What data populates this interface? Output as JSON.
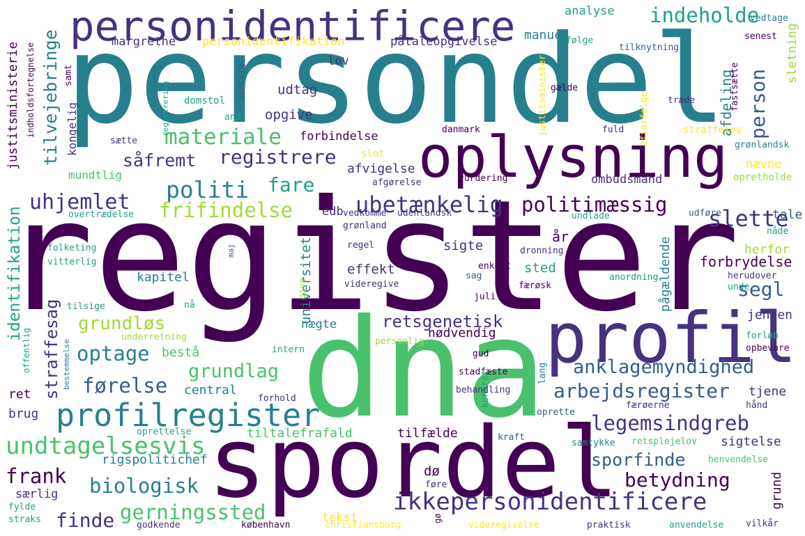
{
  "colors": {
    "background": "#ffffff",
    "palette": {
      "a": "#440154",
      "b": "#46327e",
      "c": "#365c8d",
      "d": "#277f8e",
      "e": "#1fa187",
      "f": "#4ac16d",
      "g": "#a0da39",
      "h": "#fde725"
    }
  },
  "words": [
    {
      "text": "register",
      "c": "a"
    },
    {
      "text": "persondel",
      "c": "d"
    },
    {
      "text": "dna",
      "c": "f"
    },
    {
      "text": "spordel",
      "c": "a"
    },
    {
      "text": "personidentificere",
      "c": "b"
    },
    {
      "text": "oplysning",
      "c": "a"
    },
    {
      "text": "profil",
      "c": "b"
    },
    {
      "text": "profilregister",
      "c": "d"
    },
    {
      "text": "ikkepersonidentificere",
      "c": "b"
    },
    {
      "text": "ubetænkelig",
      "c": "b"
    },
    {
      "text": "politimæssig",
      "c": "a"
    },
    {
      "text": "politi",
      "c": "d"
    },
    {
      "text": "registrere",
      "c": "b"
    },
    {
      "text": "materiale",
      "c": "f"
    },
    {
      "text": "slette",
      "c": "b"
    },
    {
      "text": "frifindelse",
      "c": "g"
    },
    {
      "text": "uhjemlet",
      "c": "b"
    },
    {
      "text": "fare",
      "c": "e"
    },
    {
      "text": "såfremt",
      "c": "b"
    },
    {
      "text": "indeholde",
      "c": "e"
    },
    {
      "text": "person",
      "c": "c"
    },
    {
      "text": "segl",
      "c": "c"
    },
    {
      "text": "retsgenetisk",
      "c": "b"
    },
    {
      "text": "anklagemyndighed",
      "c": "c"
    },
    {
      "text": "arbejdsregister",
      "c": "c"
    },
    {
      "text": "legemsindgreb",
      "c": "b"
    },
    {
      "text": "undtagelsesvis",
      "c": "f"
    },
    {
      "text": "førelse",
      "c": "c"
    },
    {
      "text": "grundlag",
      "c": "f"
    },
    {
      "text": "optage",
      "c": "d"
    },
    {
      "text": "grundløs",
      "c": "g"
    },
    {
      "text": "biologisk",
      "c": "d"
    },
    {
      "text": "gerningssted",
      "c": "f"
    },
    {
      "text": "finde",
      "c": "b"
    },
    {
      "text": "frank",
      "c": "a"
    },
    {
      "text": "sporfinde",
      "c": "c"
    },
    {
      "text": "betydning",
      "c": "a"
    },
    {
      "text": "tilvejebringe",
      "c": "d"
    },
    {
      "text": "identifikation",
      "c": "e"
    },
    {
      "text": "straffesag",
      "c": "b"
    },
    {
      "text": "universitet",
      "c": "d"
    },
    {
      "text": "justitsministerie",
      "c": "a"
    },
    {
      "text": "personidentifikation",
      "c": "h"
    },
    {
      "text": "påtaleopgivelse",
      "c": "b"
    },
    {
      "text": "margrethe",
      "c": "b"
    },
    {
      "text": "manuel",
      "c": "d"
    },
    {
      "text": "analyse",
      "c": "e"
    },
    {
      "text": "lov",
      "c": "b"
    },
    {
      "text": "udtag",
      "c": "b"
    },
    {
      "text": "opgive",
      "c": "b"
    },
    {
      "text": "forbindelse",
      "c": "a"
    },
    {
      "text": "afvigelse",
      "c": "b"
    },
    {
      "text": "ombudsmand",
      "c": "b"
    },
    {
      "text": "afdeling",
      "c": "d"
    },
    {
      "text": "sletning",
      "c": "g"
    },
    {
      "text": "mundtlig",
      "c": "f"
    },
    {
      "text": "kongelig",
      "c": "b"
    },
    {
      "text": "edb",
      "c": "b"
    },
    {
      "text": "effekt",
      "c": "b"
    },
    {
      "text": "sigte",
      "c": "b"
    },
    {
      "text": "sted",
      "c": "e"
    },
    {
      "text": "kapitel",
      "c": "d"
    },
    {
      "text": "år",
      "c": "a"
    },
    {
      "text": "forbrydelse",
      "c": "a"
    },
    {
      "text": "herfor",
      "c": "g"
    },
    {
      "text": "tale",
      "c": "c"
    },
    {
      "text": "pågældende",
      "c": "d"
    },
    {
      "text": "jensen",
      "c": "b"
    },
    {
      "text": "nægte",
      "c": "d"
    },
    {
      "text": "nødvendig",
      "c": "a"
    },
    {
      "text": "bestå",
      "c": "f"
    },
    {
      "text": "central",
      "c": "d"
    },
    {
      "text": "tilfælde",
      "c": "a"
    },
    {
      "text": "tiltalefrafald",
      "c": "f"
    },
    {
      "text": "tjene",
      "c": "b"
    },
    {
      "text": "sigtelse",
      "c": "b"
    },
    {
      "text": "rigspolitichef",
      "c": "d"
    },
    {
      "text": "særlig",
      "c": "b"
    },
    {
      "text": "tekst",
      "c": "h"
    },
    {
      "text": "ret",
      "c": "a"
    },
    {
      "text": "brug",
      "c": "b"
    },
    {
      "text": "dø",
      "c": "a"
    },
    {
      "text": "grund",
      "c": "a"
    },
    {
      "text": "nævne",
      "c": "h"
    },
    {
      "text": "opretholde",
      "c": "g"
    },
    {
      "text": "straffelov",
      "c": "h"
    },
    {
      "text": "grønlandsk",
      "c": "d"
    },
    {
      "text": "fuld",
      "c": "b"
    },
    {
      "text": "træde",
      "c": "b"
    },
    {
      "text": "fastsætte",
      "c": "a"
    },
    {
      "text": "efterfølge",
      "c": "h"
    },
    {
      "text": "justitsminister",
      "c": "h"
    },
    {
      "text": "gælde",
      "c": "a"
    },
    {
      "text": "senest",
      "c": "a"
    },
    {
      "text": "tilknytning",
      "c": "c"
    },
    {
      "text": "følge",
      "c": "e"
    },
    {
      "text": "vedtage",
      "c": "d"
    },
    {
      "text": "danmark",
      "c": "a"
    },
    {
      "text": "slot",
      "c": "h"
    },
    {
      "text": "afgørelse",
      "c": "b"
    },
    {
      "text": "vurdering",
      "c": "a"
    },
    {
      "text": "vedkomme",
      "c": "b"
    },
    {
      "text": "udenlandsk",
      "c": "b"
    },
    {
      "text": "grønland",
      "c": "b"
    },
    {
      "text": "undlade",
      "c": "e"
    },
    {
      "text": "udføre",
      "c": "c"
    },
    {
      "text": "nåde",
      "c": "e"
    },
    {
      "text": "regel",
      "c": "b"
    },
    {
      "text": "dronning",
      "c": "b"
    },
    {
      "text": "enkelt",
      "c": "a"
    },
    {
      "text": "sag",
      "c": "c"
    },
    {
      "text": "færøsk",
      "c": "a"
    },
    {
      "text": "videregive",
      "c": "b"
    },
    {
      "text": "anordning",
      "c": "e"
    },
    {
      "text": "herudover",
      "c": "b"
    },
    {
      "text": "unde",
      "c": "e"
    },
    {
      "text": "juli",
      "c": "a"
    },
    {
      "text": "domstol",
      "c": "e"
    },
    {
      "text": "sætte",
      "c": "b"
    },
    {
      "text": "and",
      "c": "e"
    },
    {
      "text": "samt",
      "c": "a"
    },
    {
      "text": "oversigt",
      "c": "c"
    },
    {
      "text": "registrering",
      "c": "e"
    },
    {
      "text": "indholdsfortegnelse",
      "c": "a"
    },
    {
      "text": "overtrædelse",
      "c": "e"
    },
    {
      "text": "folketing",
      "c": "e"
    },
    {
      "text": "vitterlig",
      "c": "e"
    },
    {
      "text": "maj",
      "c": "c"
    },
    {
      "text": "give",
      "c": "g"
    },
    {
      "text": "tilsige",
      "c": "e"
    },
    {
      "text": "nå",
      "c": "e"
    },
    {
      "text": "underretning",
      "c": "g"
    },
    {
      "text": "intern",
      "c": "e"
    },
    {
      "text": "personlig",
      "c": "g"
    },
    {
      "text": "gud",
      "c": "a"
    },
    {
      "text": "stadfæste",
      "c": "a"
    },
    {
      "text": "lang",
      "c": "d"
    },
    {
      "text": "konkret",
      "c": "e"
    },
    {
      "text": "behandling",
      "c": "b"
    },
    {
      "text": "forhold",
      "c": "b"
    },
    {
      "text": "færøerne",
      "c": "b"
    },
    {
      "text": "hånd",
      "c": "b"
    },
    {
      "text": "oprette",
      "c": "c"
    },
    {
      "text": "forløb",
      "c": "e"
    },
    {
      "text": "opbevare",
      "c": "a"
    },
    {
      "text": "offentlig",
      "c": "e"
    },
    {
      "text": "bestemmelse",
      "c": "d"
    },
    {
      "text": "oprettelse",
      "c": "e"
    },
    {
      "text": "kraft",
      "c": "c"
    },
    {
      "text": "samtykke",
      "c": "d"
    },
    {
      "text": "retsplejelov",
      "c": "f"
    },
    {
      "text": "henvendelse",
      "c": "f"
    },
    {
      "text": "føre",
      "c": "b"
    },
    {
      "text": "fylde",
      "c": "e"
    },
    {
      "text": "straks",
      "c": "e"
    },
    {
      "text": "godkende",
      "c": "b"
    },
    {
      "text": "københavn",
      "c": "a"
    },
    {
      "text": "christiansborg",
      "c": "h"
    },
    {
      "text": "gø",
      "c": "a"
    },
    {
      "text": "videregivelse",
      "c": "h"
    },
    {
      "text": "praktisk",
      "c": "b"
    },
    {
      "text": "anvendelse",
      "c": "e"
    },
    {
      "text": "vilkår",
      "c": "b"
    }
  ]
}
